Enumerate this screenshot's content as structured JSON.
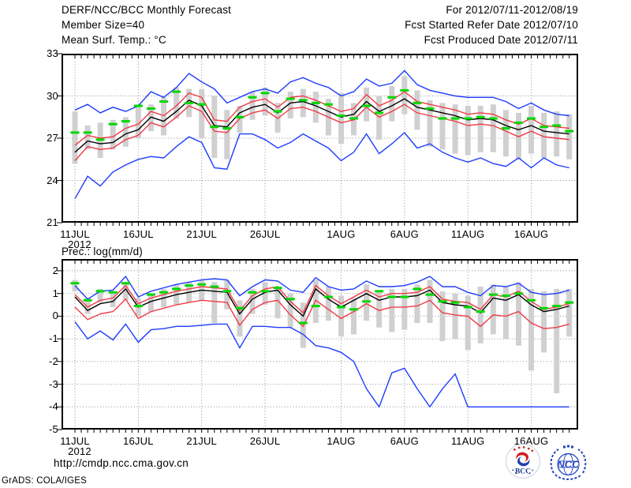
{
  "header": {
    "title": "DERF/NCC/BCC Monthly Forecast",
    "member_size": "Member Size=40",
    "for_range": "For 2012/07/11-2012/08/19",
    "fcst_started": "Fcst Started Refer Date 2012/07/10",
    "fcst_produced": "Fcst Produced Date 2012/07/11"
  },
  "footer": {
    "url": "http://cmdp.ncc.cma.gov.cn",
    "grads_credit": "GrADS: COLA/IGES",
    "logo_bcc_label": "BCC",
    "logo_ncc_label": "NCC"
  },
  "colors": {
    "envelope_blue": "#1e3cff",
    "band_red": "#f03c46",
    "mean_black": "#000000",
    "obs_green": "#00d800",
    "spread_bar_gray": "#d0d0d0",
    "grid_gray": "#8f8f8f",
    "logo_navy": "#1a3a8c"
  },
  "chart_data": [
    {
      "type": "line",
      "title": "Mean Surf. Temp.: °C",
      "x_start": "11JUL2012",
      "x_end": "19AUG2012",
      "x_days": 40,
      "x_tick_labels": [
        "11JUL",
        "16JUL",
        "21JUL",
        "26JUL",
        "1AUG",
        "6AUG",
        "11AUG",
        "16AUG"
      ],
      "x_tick_days": [
        1,
        6,
        11,
        16,
        22,
        27,
        32,
        37
      ],
      "x_year_label": "2012",
      "ylim": [
        21,
        33
      ],
      "y_ticks": [
        33,
        30,
        27,
        24,
        21
      ],
      "grid": true,
      "legend": "none",
      "series": [
        {
          "name": "ensemble-max-blue",
          "color": "#1e3cff",
          "style": "line",
          "values": [
            29.0,
            29.4,
            28.8,
            29.2,
            28.9,
            29.3,
            30.3,
            29.9,
            30.6,
            31.6,
            31.0,
            30.5,
            29.5,
            29.9,
            30.3,
            30.5,
            30.2,
            31.0,
            31.3,
            30.9,
            30.6,
            30.0,
            30.3,
            31.2,
            30.7,
            30.9,
            31.8,
            30.8,
            30.4,
            30.2,
            30.0,
            29.9,
            29.9,
            29.9,
            29.6,
            29.1,
            29.5,
            29.0,
            28.7,
            28.6
          ]
        },
        {
          "name": "upper-band-red",
          "color": "#f03c46",
          "style": "line",
          "values": [
            26.5,
            27.2,
            27.0,
            27.1,
            27.7,
            28.0,
            28.9,
            28.6,
            29.3,
            30.2,
            29.9,
            28.3,
            28.2,
            29.2,
            29.6,
            29.8,
            29.2,
            29.9,
            30.0,
            29.7,
            29.3,
            28.9,
            29.1,
            30.1,
            29.3,
            29.7,
            30.3,
            29.6,
            29.4,
            29.2,
            29.0,
            28.7,
            28.8,
            28.7,
            28.3,
            28.0,
            28.4,
            27.9,
            27.8,
            27.7
          ]
        },
        {
          "name": "ensemble-mean-black",
          "color": "#000000",
          "style": "line",
          "values": [
            26.0,
            26.8,
            26.6,
            26.7,
            27.3,
            27.6,
            28.5,
            28.2,
            28.9,
            29.7,
            29.3,
            27.9,
            27.8,
            28.8,
            29.2,
            29.4,
            28.8,
            29.5,
            29.6,
            29.3,
            28.9,
            28.5,
            28.7,
            29.6,
            28.9,
            29.3,
            29.8,
            29.2,
            29.0,
            28.8,
            28.6,
            28.3,
            28.4,
            28.3,
            27.9,
            27.6,
            27.9,
            27.5,
            27.4,
            27.3
          ]
        },
        {
          "name": "lower-band-red",
          "color": "#f03c46",
          "style": "line",
          "values": [
            25.4,
            26.4,
            26.2,
            26.3,
            26.9,
            27.2,
            28.1,
            27.8,
            28.5,
            29.3,
            28.9,
            27.5,
            27.4,
            28.4,
            28.8,
            29.0,
            28.4,
            29.1,
            29.2,
            28.9,
            28.5,
            28.1,
            28.3,
            29.2,
            28.5,
            28.9,
            29.4,
            28.8,
            28.6,
            28.4,
            28.2,
            27.9,
            28.0,
            27.9,
            27.5,
            27.1,
            27.5,
            27.1,
            27.0,
            26.9
          ]
        },
        {
          "name": "ensemble-min-blue",
          "color": "#1e3cff",
          "style": "line",
          "values": [
            22.7,
            24.3,
            23.6,
            24.6,
            25.1,
            25.5,
            25.7,
            25.6,
            26.4,
            27.1,
            26.7,
            24.9,
            24.8,
            27.3,
            27.3,
            26.9,
            26.3,
            26.7,
            27.3,
            26.8,
            26.3,
            25.4,
            26.0,
            27.3,
            25.9,
            26.6,
            27.4,
            26.3,
            26.6,
            26.0,
            25.6,
            25.3,
            25.6,
            25.2,
            25.0,
            25.6,
            24.9,
            25.6,
            25.1,
            24.9
          ]
        },
        {
          "name": "daily-green-dashes",
          "color": "#00d800",
          "style": "dashes",
          "values": [
            27.4,
            27.4,
            26.9,
            28.0,
            28.2,
            29.3,
            29.1,
            29.6,
            30.3,
            29.5,
            29.4,
            27.8,
            27.7,
            28.5,
            29.9,
            30.2,
            28.9,
            29.8,
            29.7,
            29.5,
            29.4,
            28.6,
            28.4,
            29.3,
            28.8,
            29.9,
            30.4,
            29.5,
            29.1,
            28.4,
            28.4,
            28.4,
            28.5,
            28.4,
            27.7,
            28.1,
            28.4,
            27.8,
            27.9,
            27.5
          ]
        }
      ],
      "spread_bars": {
        "name": "ensemble-spread-gray",
        "color": "#d0d0d0",
        "lo": [
          25.2,
          26.2,
          25.6,
          26.2,
          26.4,
          27.0,
          27.5,
          27.2,
          28.4,
          28.5,
          27.0,
          25.6,
          25.5,
          27.4,
          28.3,
          28.6,
          27.4,
          28.4,
          28.5,
          28.1,
          27.2,
          26.6,
          27.2,
          28.2,
          26.9,
          28.2,
          28.7,
          27.6,
          26.4,
          26.2,
          25.9,
          25.8,
          26.0,
          26.0,
          25.7,
          25.5,
          25.9,
          25.6,
          25.7,
          25.5
        ],
        "hi": [
          28.9,
          27.9,
          28.1,
          28.3,
          28.5,
          29.3,
          29.4,
          29.9,
          30.6,
          30.5,
          30.5,
          30.0,
          29.0,
          29.3,
          30.3,
          30.6,
          29.5,
          30.3,
          30.5,
          30.3,
          29.8,
          30.2,
          29.5,
          30.6,
          30.0,
          30.7,
          31.4,
          30.4,
          29.7,
          29.5,
          29.4,
          29.3,
          29.3,
          29.4,
          29.0,
          28.8,
          29.3,
          28.8,
          28.9,
          28.7
        ]
      }
    },
    {
      "type": "line",
      "title": "Prec.: log(mm/d)",
      "x_start": "11JUL2012",
      "x_end": "19AUG2012",
      "x_days": 40,
      "x_tick_labels": [
        "11JUL",
        "16JUL",
        "21JUL",
        "26JUL",
        "1AUG",
        "6AUG",
        "11AUG",
        "16AUG"
      ],
      "x_tick_days": [
        1,
        6,
        11,
        16,
        22,
        27,
        32,
        37
      ],
      "x_year_label": "2012",
      "ylim": [
        -5,
        2
      ],
      "y_ticks": [
        2,
        1,
        0,
        -1,
        -2,
        -3,
        -4,
        -5
      ],
      "grid": true,
      "legend": "none",
      "series": [
        {
          "name": "ensemble-max-blue",
          "color": "#1e3cff",
          "style": "line",
          "values": [
            1.35,
            0.75,
            1.1,
            1.15,
            1.75,
            0.85,
            1.1,
            1.25,
            1.4,
            1.5,
            1.6,
            1.65,
            1.6,
            0.9,
            1.3,
            1.6,
            1.55,
            1.15,
            1.05,
            1.7,
            1.3,
            1.15,
            1.2,
            1.55,
            1.3,
            1.3,
            1.35,
            1.5,
            1.75,
            1.3,
            1.3,
            1.05,
            0.9,
            1.35,
            1.3,
            1.45,
            1.05,
            0.95,
            1.0,
            1.15
          ]
        },
        {
          "name": "upper-band-red",
          "color": "#f03c46",
          "style": "line",
          "values": [
            0.95,
            0.4,
            0.7,
            0.8,
            1.35,
            0.55,
            0.8,
            0.95,
            1.1,
            1.2,
            1.3,
            1.25,
            1.2,
            0.25,
            0.9,
            1.2,
            1.3,
            0.65,
            0.15,
            1.35,
            0.9,
            0.55,
            0.85,
            1.15,
            0.85,
            1.0,
            1.0,
            1.05,
            1.3,
            0.75,
            0.65,
            0.6,
            0.3,
            0.95,
            0.85,
            1.1,
            0.65,
            0.3,
            0.4,
            0.55
          ]
        },
        {
          "name": "ensemble-mean-black",
          "color": "#000000",
          "style": "line",
          "values": [
            0.85,
            0.25,
            0.55,
            0.65,
            1.2,
            0.4,
            0.65,
            0.8,
            0.95,
            1.05,
            1.15,
            1.1,
            1.05,
            0.1,
            0.75,
            1.05,
            1.15,
            0.5,
            0.0,
            1.2,
            0.75,
            0.4,
            0.7,
            1.0,
            0.7,
            0.85,
            0.85,
            0.9,
            1.15,
            0.6,
            0.5,
            0.45,
            0.15,
            0.8,
            0.7,
            0.95,
            0.5,
            0.2,
            0.3,
            0.45
          ]
        },
        {
          "name": "lower-band-red",
          "color": "#f03c46",
          "style": "line",
          "values": [
            0.4,
            -0.15,
            0.1,
            0.2,
            0.75,
            -0.1,
            0.2,
            0.35,
            0.5,
            0.6,
            0.7,
            0.65,
            0.6,
            -0.4,
            0.3,
            0.6,
            0.7,
            0.05,
            -0.45,
            0.7,
            0.3,
            -0.1,
            0.2,
            0.55,
            0.25,
            0.4,
            0.4,
            0.45,
            0.7,
            0.15,
            0.05,
            0.0,
            -0.45,
            0.05,
            0.0,
            0.2,
            -0.3,
            -0.55,
            -0.5,
            -0.35
          ]
        },
        {
          "name": "ensemble-min-blue",
          "color": "#1e3cff",
          "style": "line",
          "values": [
            -0.25,
            -1.0,
            -0.65,
            -1.05,
            -0.35,
            -1.15,
            -0.6,
            -0.55,
            -0.45,
            -0.45,
            -0.4,
            -0.35,
            -0.35,
            -1.4,
            -0.45,
            -0.45,
            -0.5,
            -0.5,
            -0.8,
            -1.3,
            -1.4,
            -1.6,
            -2.0,
            -3.2,
            -4.0,
            -2.5,
            -2.3,
            -3.2,
            -4.0,
            -3.2,
            -2.55,
            -4.0,
            -4.0,
            -4.0,
            -4.0,
            -4.0,
            -4.0,
            -4.0,
            -4.0,
            -4.0
          ]
        },
        {
          "name": "daily-green-dashes",
          "color": "#00d800",
          "style": "dashes",
          "values": [
            1.45,
            0.7,
            1.1,
            1.05,
            1.45,
            0.45,
            0.95,
            1.05,
            1.2,
            1.35,
            1.4,
            1.3,
            1.1,
            0.35,
            1.05,
            1.1,
            1.25,
            0.75,
            -0.3,
            0.45,
            0.85,
            0.4,
            0.3,
            0.65,
            1.1,
            0.85,
            0.85,
            1.2,
            0.95,
            0.65,
            0.6,
            0.4,
            0.2,
            0.95,
            0.9,
            1.0,
            0.7,
            0.35,
            0.45,
            0.6
          ]
        }
      ],
      "spread_bars": {
        "name": "ensemble-spread-gray",
        "color": "#d0d0d0",
        "lo": [
          1.1,
          0.1,
          0.6,
          0.4,
          0.7,
          0.0,
          0.2,
          0.4,
          0.5,
          0.6,
          0.7,
          -0.3,
          0.3,
          -0.9,
          0.1,
          0.5,
          -0.1,
          -0.5,
          -1.4,
          -0.3,
          -0.2,
          -0.9,
          -0.8,
          -0.2,
          -0.5,
          -0.7,
          -0.6,
          -0.3,
          -0.3,
          -1.1,
          -1.0,
          -1.5,
          -1.2,
          -0.8,
          -1.0,
          -1.3,
          -2.4,
          -1.6,
          -3.4,
          -0.9
        ],
        "hi": [
          1.6,
          0.8,
          1.2,
          1.1,
          1.5,
          0.8,
          1.0,
          1.2,
          1.4,
          1.5,
          1.6,
          1.5,
          1.6,
          0.7,
          1.2,
          1.5,
          1.3,
          1.0,
          0.6,
          1.6,
          1.3,
          0.9,
          0.8,
          1.4,
          1.1,
          1.2,
          1.2,
          1.4,
          1.6,
          1.1,
          1.0,
          0.9,
          1.3,
          1.4,
          1.3,
          1.5,
          1.2,
          1.1,
          1.2,
          1.2
        ]
      }
    }
  ]
}
